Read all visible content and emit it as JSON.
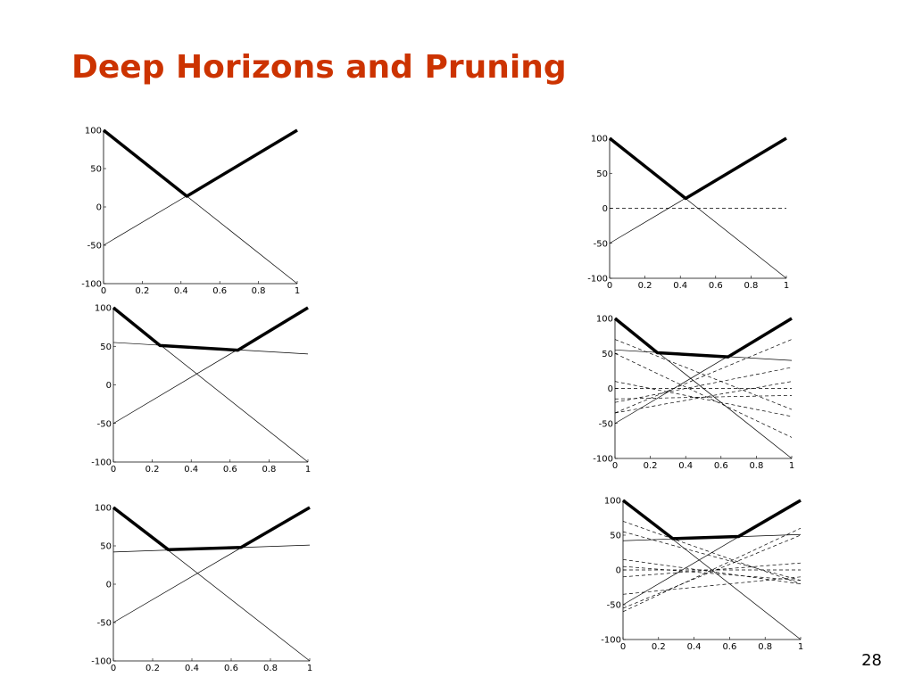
{
  "title": "Deep Horizons and Pruning",
  "page_number": "28",
  "chart_data": [
    {
      "type": "line",
      "xlim": [
        0,
        1
      ],
      "ylim": [
        -100,
        100
      ],
      "xticks": [
        0,
        0.2,
        0.4,
        0.6,
        0.8,
        1
      ],
      "yticks": [
        -100,
        -50,
        0,
        50,
        100
      ],
      "grid": false,
      "series": [
        {
          "style": "solid",
          "color": "#000000",
          "x": [
            0,
            1
          ],
          "values": [
            100,
            -100
          ]
        },
        {
          "style": "solid",
          "color": "#000000",
          "x": [
            0,
            1
          ],
          "values": [
            -50,
            100
          ]
        },
        {
          "style": "thick",
          "color": "#000000",
          "x": [
            0,
            0.43,
            1
          ],
          "values": [
            100,
            14,
            100
          ]
        }
      ]
    },
    {
      "type": "line",
      "xlim": [
        0,
        1
      ],
      "ylim": [
        -100,
        100
      ],
      "xticks": [
        0,
        0.2,
        0.4,
        0.6,
        0.8,
        1
      ],
      "yticks": [
        -100,
        -50,
        0,
        50,
        100
      ],
      "grid": false,
      "series": [
        {
          "style": "solid",
          "color": "#000000",
          "x": [
            0,
            1
          ],
          "values": [
            100,
            -100
          ]
        },
        {
          "style": "solid",
          "color": "#000000",
          "x": [
            0,
            1
          ],
          "values": [
            -50,
            100
          ]
        },
        {
          "style": "dashed",
          "color": "#000000",
          "x": [
            0,
            1
          ],
          "values": [
            0,
            0
          ]
        },
        {
          "style": "thick",
          "color": "#000000",
          "x": [
            0,
            0.43,
            1
          ],
          "values": [
            100,
            14,
            100
          ]
        }
      ]
    },
    {
      "type": "line",
      "xlim": [
        0,
        1
      ],
      "ylim": [
        -100,
        100
      ],
      "xticks": [
        0,
        0.2,
        0.4,
        0.6,
        0.8,
        1
      ],
      "yticks": [
        -100,
        -50,
        0,
        50,
        100
      ],
      "grid": false,
      "series": [
        {
          "style": "solid",
          "color": "#000000",
          "x": [
            0,
            1
          ],
          "values": [
            100,
            -100
          ]
        },
        {
          "style": "solid",
          "color": "#000000",
          "x": [
            0,
            1
          ],
          "values": [
            -50,
            100
          ]
        },
        {
          "style": "solid",
          "color": "#000000",
          "x": [
            0,
            1
          ],
          "values": [
            55,
            40
          ]
        },
        {
          "style": "thick",
          "color": "#000000",
          "x": [
            0,
            0.24,
            0.64,
            1
          ],
          "values": [
            100,
            51,
            45,
            100
          ]
        }
      ]
    },
    {
      "type": "line",
      "xlim": [
        0,
        1
      ],
      "ylim": [
        -100,
        100
      ],
      "xticks": [
        0,
        0.2,
        0.4,
        0.6,
        0.8,
        1
      ],
      "yticks": [
        -100,
        -50,
        0,
        50,
        100
      ],
      "grid": false,
      "series": [
        {
          "style": "solid",
          "color": "#000000",
          "x": [
            0,
            1
          ],
          "values": [
            100,
            -100
          ]
        },
        {
          "style": "solid",
          "color": "#000000",
          "x": [
            0,
            1
          ],
          "values": [
            -50,
            100
          ]
        },
        {
          "style": "solid",
          "color": "#000000",
          "x": [
            0,
            1
          ],
          "values": [
            55,
            40
          ]
        },
        {
          "style": "dashed",
          "color": "#000000",
          "x": [
            0,
            1
          ],
          "values": [
            70,
            -30
          ]
        },
        {
          "style": "dashed",
          "color": "#000000",
          "x": [
            0,
            1
          ],
          "values": [
            50,
            -70
          ]
        },
        {
          "style": "dashed",
          "color": "#000000",
          "x": [
            0,
            1
          ],
          "values": [
            -35,
            70
          ]
        },
        {
          "style": "dashed",
          "color": "#000000",
          "x": [
            0,
            1
          ],
          "values": [
            -20,
            30
          ]
        },
        {
          "style": "dashed",
          "color": "#000000",
          "x": [
            0,
            1
          ],
          "values": [
            10,
            -40
          ]
        },
        {
          "style": "dashed",
          "color": "#000000",
          "x": [
            0,
            1
          ],
          "values": [
            -35,
            10
          ]
        },
        {
          "style": "dashed",
          "color": "#000000",
          "x": [
            0,
            1
          ],
          "values": [
            0,
            0
          ]
        },
        {
          "style": "dashed",
          "color": "#000000",
          "x": [
            0,
            1
          ],
          "values": [
            -15,
            -10
          ]
        },
        {
          "style": "thick",
          "color": "#000000",
          "x": [
            0,
            0.24,
            0.64,
            1
          ],
          "values": [
            100,
            51,
            45,
            100
          ]
        }
      ]
    },
    {
      "type": "line",
      "xlim": [
        0,
        1
      ],
      "ylim": [
        -100,
        100
      ],
      "xticks": [
        0,
        0.2,
        0.4,
        0.6,
        0.8,
        1
      ],
      "yticks": [
        -100,
        -50,
        0,
        50,
        100
      ],
      "grid": false,
      "series": [
        {
          "style": "solid",
          "color": "#000000",
          "x": [
            0,
            1
          ],
          "values": [
            100,
            -100
          ]
        },
        {
          "style": "solid",
          "color": "#000000",
          "x": [
            0,
            1
          ],
          "values": [
            -50,
            100
          ]
        },
        {
          "style": "solid",
          "color": "#000000",
          "x": [
            0,
            1
          ],
          "values": [
            42,
            51
          ]
        },
        {
          "style": "thick",
          "color": "#000000",
          "x": [
            0,
            0.28,
            0.65,
            1
          ],
          "values": [
            100,
            45,
            48,
            100
          ]
        }
      ]
    },
    {
      "type": "line",
      "xlim": [
        0,
        1
      ],
      "ylim": [
        -100,
        100
      ],
      "xticks": [
        0,
        0.2,
        0.4,
        0.6,
        0.8,
        1
      ],
      "yticks": [
        -100,
        -50,
        0,
        50,
        100
      ],
      "grid": false,
      "series": [
        {
          "style": "solid",
          "color": "#000000",
          "x": [
            0,
            1
          ],
          "values": [
            100,
            -100
          ]
        },
        {
          "style": "solid",
          "color": "#000000",
          "x": [
            0,
            1
          ],
          "values": [
            -50,
            100
          ]
        },
        {
          "style": "solid",
          "color": "#000000",
          "x": [
            0,
            1
          ],
          "values": [
            42,
            51
          ]
        },
        {
          "style": "dashed",
          "color": "#000000",
          "x": [
            0,
            1
          ],
          "values": [
            70,
            -20
          ]
        },
        {
          "style": "dashed",
          "color": "#000000",
          "x": [
            0,
            1
          ],
          "values": [
            55,
            -15
          ]
        },
        {
          "style": "dashed",
          "color": "#000000",
          "x": [
            0,
            1
          ],
          "values": [
            -60,
            60
          ]
        },
        {
          "style": "dashed",
          "color": "#000000",
          "x": [
            0,
            1
          ],
          "values": [
            -55,
            50
          ]
        },
        {
          "style": "dashed",
          "color": "#000000",
          "x": [
            0,
            1
          ],
          "values": [
            15,
            -20
          ]
        },
        {
          "style": "dashed",
          "color": "#000000",
          "x": [
            0,
            1
          ],
          "values": [
            -35,
            -10
          ]
        },
        {
          "style": "dashed",
          "color": "#000000",
          "x": [
            0,
            1
          ],
          "values": [
            0,
            0
          ]
        },
        {
          "style": "dashed",
          "color": "#000000",
          "x": [
            0,
            1
          ],
          "values": [
            -10,
            10
          ]
        },
        {
          "style": "dashed",
          "color": "#000000",
          "x": [
            0,
            1
          ],
          "values": [
            5,
            -15
          ]
        },
        {
          "style": "thick",
          "color": "#000000",
          "x": [
            0,
            0.28,
            0.65,
            1
          ],
          "values": [
            100,
            45,
            48,
            100
          ]
        }
      ]
    }
  ]
}
